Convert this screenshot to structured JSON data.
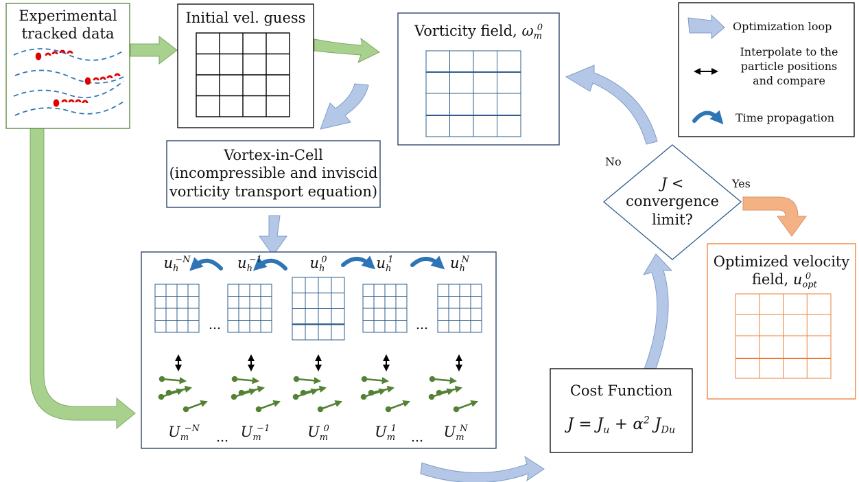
{
  "nodes": {
    "experimental": "Experimental tracked data",
    "initial_guess": "Initial vel. guess",
    "vorticity_field": "Vorticity field,",
    "vic_line1": "Vortex-in-Cell",
    "vic_line2": "(incompressible and inviscid",
    "vic_line3": "vorticity transport equation)",
    "cost_title": "Cost Function",
    "decision_line1": "J <",
    "decision_line2": "convergence",
    "decision_line3": "limit?",
    "optimized_line1": "Optimized velocity",
    "optimized_line2": "field,"
  },
  "edges": {
    "no_label": "No",
    "yes_label": "Yes"
  },
  "legend": {
    "optimization": "Optimization loop",
    "interpolate_line1": "Interpolate to the",
    "interpolate_line2": "particle positions",
    "interpolate_line3": "and compare",
    "time": "Time propagation"
  },
  "math": {
    "omega": "ω",
    "omega_sub": "m",
    "omega_sup": "0",
    "u": "u",
    "opt_sub": "opt",
    "opt_sup": "0",
    "J": "J",
    "Ju_sub": "u",
    "alpha": "α",
    "alpha_sup": "2",
    "JDu_sub": "Du",
    "eq": "=",
    "plus": "+",
    "h": "h",
    "U": "U",
    "m": "m",
    "ellipsis": "..."
  },
  "time_steps": [
    {
      "u_sup": "−N",
      "U_sup": "−N"
    },
    {
      "u_sup": "−1",
      "U_sup": "−1"
    },
    {
      "u_sup": "0",
      "U_sup": "0"
    },
    {
      "u_sup": "1",
      "U_sup": "1"
    },
    {
      "u_sup": "N",
      "U_sup": "N"
    }
  ],
  "colors": {
    "green_arrow": "#a9d18e",
    "blue_arrow": "#b4c7e7",
    "orange_arrow": "#f4b183",
    "orange_box": "#ed7d31",
    "grid_blue": "#2e5c8a",
    "particle_red": "#e00000",
    "vector_green": "#548235",
    "dashed_blue": "#2e75b6"
  }
}
